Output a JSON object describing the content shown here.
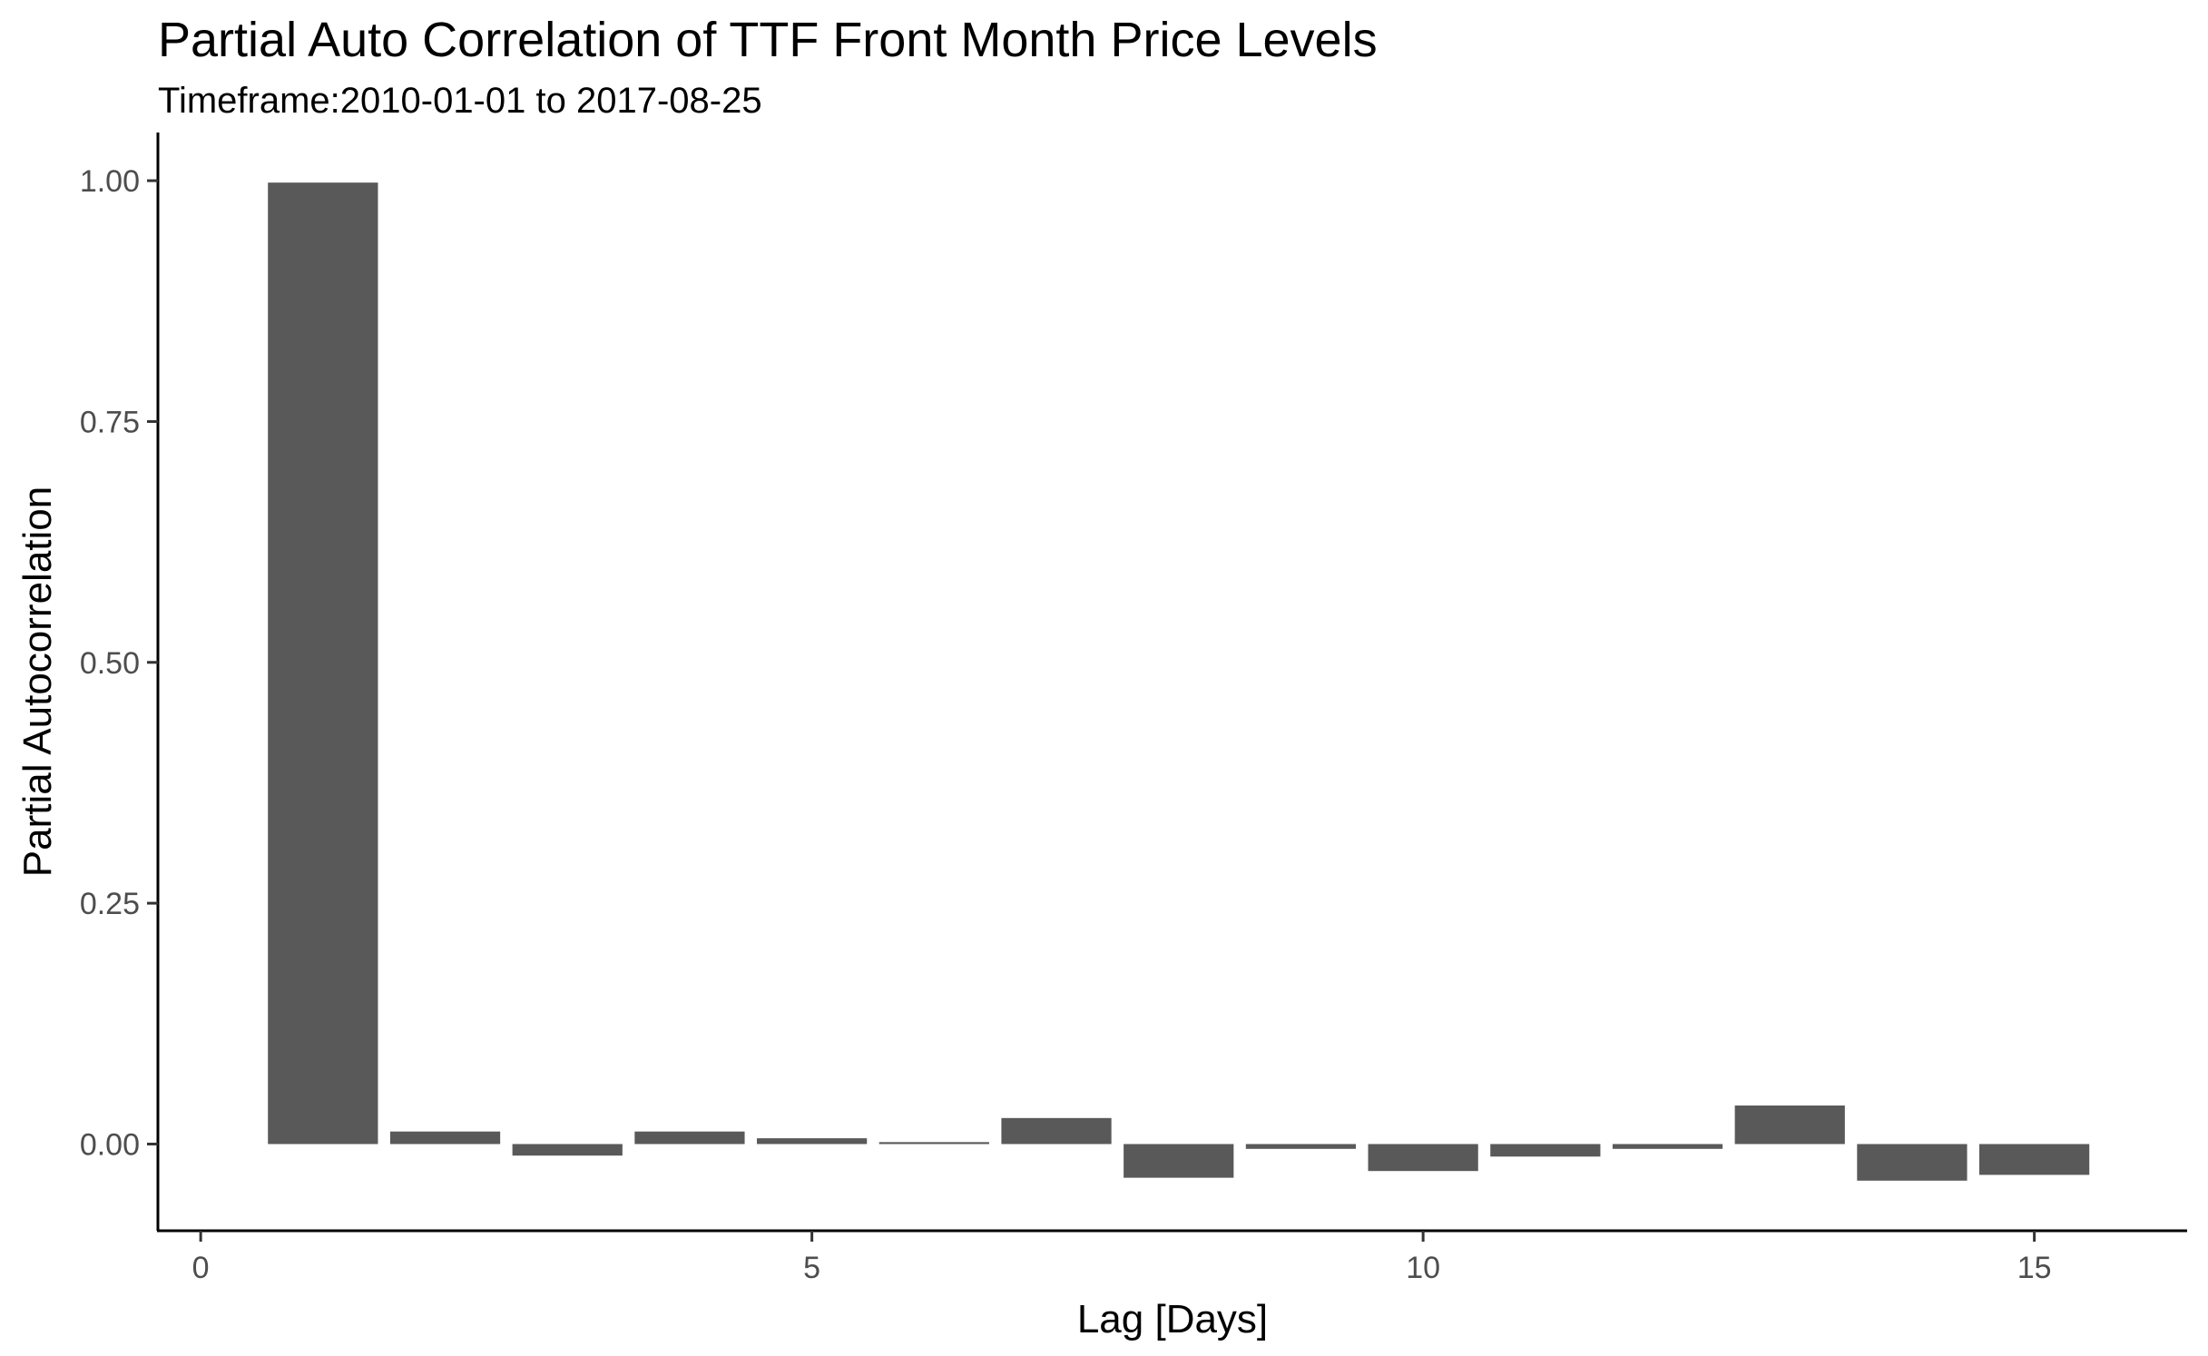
{
  "chart_data": {
    "type": "bar",
    "title": "Partial Auto Correlation of TTF Front Month Price Levels",
    "subtitle": "Timeframe:2010-01-01 to 2017-08-25",
    "xlabel": "Lag [Days]",
    "ylabel": "Partial Autocorrelation",
    "x": [
      1,
      2,
      3,
      4,
      5,
      6,
      7,
      8,
      9,
      10,
      11,
      12,
      13,
      14,
      15
    ],
    "values": [
      0.998,
      0.013,
      -0.012,
      0.013,
      0.006,
      0.002,
      0.027,
      -0.035,
      -0.005,
      -0.028,
      -0.013,
      -0.005,
      0.04,
      -0.038,
      -0.032
    ],
    "xlim": [
      -0.35,
      16.25
    ],
    "ylim": [
      -0.09,
      1.05
    ],
    "x_ticks": [
      0,
      5,
      10,
      15
    ],
    "x_tick_labels": [
      "0",
      "5",
      "10",
      "15"
    ],
    "y_ticks": [
      0,
      0.25,
      0.5,
      0.75,
      1
    ],
    "y_tick_labels": [
      "0.00",
      "0.25",
      "0.50",
      "0.75",
      "1.00"
    ],
    "bar_color": "#595959",
    "grid": false,
    "legend": "none"
  }
}
